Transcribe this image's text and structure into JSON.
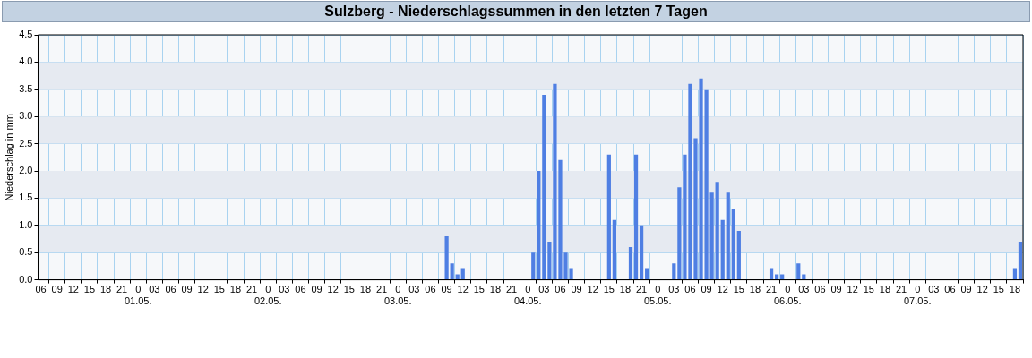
{
  "chart_data": {
    "type": "bar",
    "title": "Sulzberg - Niederschlagssummen in den letzten 7 Tagen",
    "ylabel": "Niederschlag in mm",
    "x": [
      "--05-03T09:00",
      "--05-03T10:00",
      "--05-03T11:00",
      "--05-03T12:00",
      "--05-04T01:00",
      "--05-04T02:00",
      "--05-04T03:00",
      "--05-04T04:00",
      "--05-04T05:00",
      "--05-04T06:00",
      "--05-04T07:00",
      "--05-04T08:00",
      "--05-04T15:00",
      "--05-04T16:00",
      "--05-04T19:00",
      "--05-04T20:00",
      "--05-04T21:00",
      "--05-04T22:00",
      "--05-05T03:00",
      "--05-05T04:00",
      "--05-05T05:00",
      "--05-05T06:00",
      "--05-05T07:00",
      "--05-05T08:00",
      "--05-05T09:00",
      "--05-05T10:00",
      "--05-05T11:00",
      "--05-05T12:00",
      "--05-05T13:00",
      "--05-05T14:00",
      "--05-05T15:00",
      "--05-05T21:00",
      "--05-05T22:00",
      "--05-05T23:00",
      "--05-06T02:00",
      "--05-06T03:00",
      "--05-07T18:00",
      "--05-07T19:00"
    ],
    "values": [
      0.8,
      0.3,
      0.1,
      0.2,
      0.5,
      2.0,
      3.4,
      0.7,
      3.6,
      2.2,
      0.5,
      0.2,
      2.3,
      1.1,
      0.6,
      2.3,
      1.0,
      0.2,
      0.3,
      1.7,
      2.3,
      3.6,
      2.6,
      3.7,
      3.5,
      1.6,
      1.8,
      1.1,
      1.6,
      1.3,
      0.9,
      0.2,
      0.1,
      0.1,
      0.3,
      0.1,
      0.2,
      0.7
    ],
    "color": "#4f7fe3",
    "xlim": [
      "--04-30T05:30",
      "--05-07T19:30"
    ],
    "xticks": [
      {
        "value": "--04-30T06:00",
        "label": "06"
      },
      {
        "value": "--04-30T09:00",
        "label": "09"
      },
      {
        "value": "--04-30T12:00",
        "label": "12"
      },
      {
        "value": "--04-30T15:00",
        "label": "15"
      },
      {
        "value": "--04-30T18:00",
        "label": "18"
      },
      {
        "value": "--04-30T21:00",
        "label": "21"
      },
      {
        "value": "--05-01T00:00",
        "label": "0\n01.05."
      },
      {
        "value": "--05-01T03:00",
        "label": "03"
      },
      {
        "value": "--05-01T06:00",
        "label": "06"
      },
      {
        "value": "--05-01T09:00",
        "label": "09"
      },
      {
        "value": "--05-01T12:00",
        "label": "12"
      },
      {
        "value": "--05-01T15:00",
        "label": "15"
      },
      {
        "value": "--05-01T18:00",
        "label": "18"
      },
      {
        "value": "--05-01T21:00",
        "label": "21"
      },
      {
        "value": "--05-02T00:00",
        "label": "0\n02.05."
      },
      {
        "value": "--05-02T03:00",
        "label": "03"
      },
      {
        "value": "--05-02T06:00",
        "label": "06"
      },
      {
        "value": "--05-02T09:00",
        "label": "09"
      },
      {
        "value": "--05-02T12:00",
        "label": "12"
      },
      {
        "value": "--05-02T15:00",
        "label": "15"
      },
      {
        "value": "--05-02T18:00",
        "label": "18"
      },
      {
        "value": "--05-02T21:00",
        "label": "21"
      },
      {
        "value": "--05-03T00:00",
        "label": "0\n03.05."
      },
      {
        "value": "--05-03T03:00",
        "label": "03"
      },
      {
        "value": "--05-03T06:00",
        "label": "06"
      },
      {
        "value": "--05-03T09:00",
        "label": "09"
      },
      {
        "value": "--05-03T12:00",
        "label": "12"
      },
      {
        "value": "--05-03T15:00",
        "label": "15"
      },
      {
        "value": "--05-03T18:00",
        "label": "18"
      },
      {
        "value": "--05-03T21:00",
        "label": "21"
      },
      {
        "value": "--05-04T00:00",
        "label": "0\n04.05."
      },
      {
        "value": "--05-04T03:00",
        "label": "03"
      },
      {
        "value": "--05-04T06:00",
        "label": "06"
      },
      {
        "value": "--05-04T09:00",
        "label": "09"
      },
      {
        "value": "--05-04T12:00",
        "label": "12"
      },
      {
        "value": "--05-04T15:00",
        "label": "15"
      },
      {
        "value": "--05-04T18:00",
        "label": "18"
      },
      {
        "value": "--05-04T21:00",
        "label": "21"
      },
      {
        "value": "--05-05T00:00",
        "label": "0\n05.05."
      },
      {
        "value": "--05-05T03:00",
        "label": "03"
      },
      {
        "value": "--05-05T06:00",
        "label": "06"
      },
      {
        "value": "--05-05T09:00",
        "label": "09"
      },
      {
        "value": "--05-05T12:00",
        "label": "12"
      },
      {
        "value": "--05-05T15:00",
        "label": "15"
      },
      {
        "value": "--05-05T18:00",
        "label": "18"
      },
      {
        "value": "--05-05T21:00",
        "label": "21"
      },
      {
        "value": "--05-06T00:00",
        "label": "0\n06.05."
      },
      {
        "value": "--05-06T03:00",
        "label": "03"
      },
      {
        "value": "--05-06T06:00",
        "label": "06"
      },
      {
        "value": "--05-06T09:00",
        "label": "09"
      },
      {
        "value": "--05-06T12:00",
        "label": "12"
      },
      {
        "value": "--05-06T15:00",
        "label": "15"
      },
      {
        "value": "--05-06T18:00",
        "label": "18"
      },
      {
        "value": "--05-06T21:00",
        "label": "21"
      },
      {
        "value": "--05-07T00:00",
        "label": "0\n07.05."
      },
      {
        "value": "--05-07T03:00",
        "label": "03"
      },
      {
        "value": "--05-07T06:00",
        "label": "06"
      },
      {
        "value": "--05-07T09:00",
        "label": "09"
      },
      {
        "value": "--05-07T12:00",
        "label": "12"
      },
      {
        "value": "--05-07T15:00",
        "label": "15"
      },
      {
        "value": "--05-07T18:00",
        "label": "18"
      }
    ],
    "ylim": [
      0,
      4.5
    ],
    "yticks": [
      {
        "value": 0,
        "label": "0.0"
      },
      {
        "value": 0.5,
        "label": "0.5"
      },
      {
        "value": 1,
        "label": "1.0"
      },
      {
        "value": 1.5,
        "label": "1.5"
      },
      {
        "value": 2,
        "label": "2.0"
      },
      {
        "value": 2.5,
        "label": "2.5"
      },
      {
        "value": 3,
        "label": "3.0"
      },
      {
        "value": 3.5,
        "label": "3.5"
      },
      {
        "value": 4,
        "label": "4.0"
      },
      {
        "value": 4.5,
        "label": "4.5"
      }
    ],
    "bands": [
      {
        "axis": "y",
        "from": 0.5,
        "to": 1,
        "color": "#e6eaf1"
      },
      {
        "axis": "y",
        "from": 1.5,
        "to": 2,
        "color": "#e6eaf1"
      },
      {
        "axis": "y",
        "from": 2.5,
        "to": 3,
        "color": "#e6eaf1"
      },
      {
        "axis": "y",
        "from": 3.5,
        "to": 4,
        "color": "#e6eaf1"
      }
    ],
    "grid": true,
    "legend": false
  }
}
